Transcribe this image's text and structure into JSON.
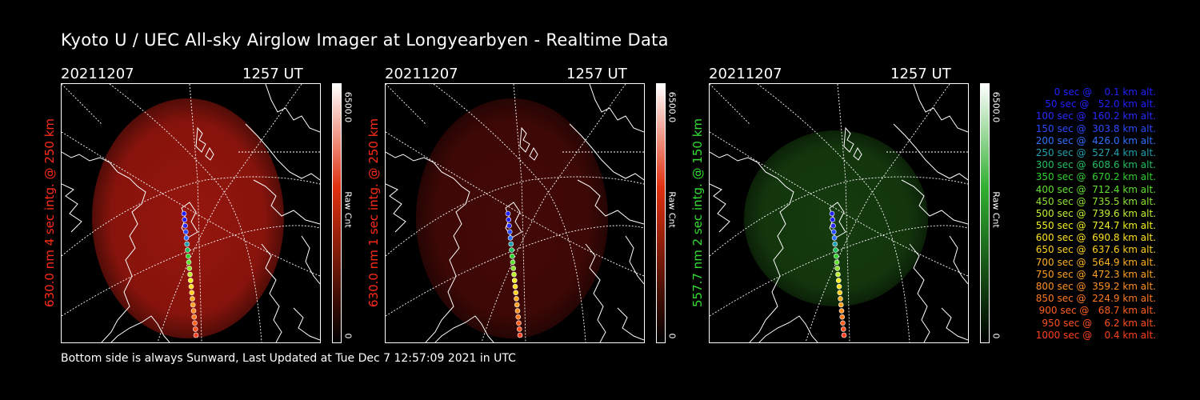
{
  "title": "Kyoto U / UEC All-sky Airglow Imager at Longyearbyen - Realtime Data",
  "footer": "Bottom side is always Sunward, Last Updated at Tue Dec  7 12:57:09 2021 in UTC",
  "panels": [
    {
      "date": "20211207",
      "time": "1257 UT",
      "ylabel": "630.0 nm 4 sec intg. @ 250 km",
      "label_color": "#ff2a1a",
      "cbar_max": "6500.0",
      "cbar_min": "0",
      "cbar_unit": "Raw Cnt",
      "glow_color": "#b01a10",
      "glow_opacity": 0.85,
      "cbar_color": "#e03010"
    },
    {
      "date": "20211207",
      "time": "1257 UT",
      "ylabel": "630.0 nm 1 sec intg. @ 250 km",
      "label_color": "#ff2a1a",
      "cbar_max": "6500.0",
      "cbar_min": "0",
      "cbar_unit": "Raw Cnt",
      "glow_color": "#5a0c08",
      "glow_opacity": 0.75,
      "cbar_color": "#e03010"
    },
    {
      "date": "20211207",
      "time": "1257 UT",
      "ylabel": "557.7 nm 2 sec intg. @ 150 km",
      "label_color": "#33dd33",
      "cbar_max": "6500.0",
      "cbar_min": "0",
      "cbar_unit": "Raw Cnt",
      "glow_color": "#1a4a12",
      "glow_opacity": 0.8,
      "cbar_color": "#30b030"
    }
  ],
  "legend": [
    {
      "text": "   0 sec @    0.1 km alt.",
      "color": "#2020ff"
    },
    {
      "text": "  50 sec @   52.0 km alt.",
      "color": "#2020ff"
    },
    {
      "text": " 100 sec @  160.2 km alt.",
      "color": "#2a2aff"
    },
    {
      "text": " 150 sec @  303.8 km alt.",
      "color": "#2a4aff"
    },
    {
      "text": " 200 sec @  426.0 km alt.",
      "color": "#3070ff"
    },
    {
      "text": " 250 sec @  527.4 km alt.",
      "color": "#20a0b0"
    },
    {
      "text": " 300 sec @  608.6 km alt.",
      "color": "#20c060"
    },
    {
      "text": " 350 sec @  670.2 km alt.",
      "color": "#30d030"
    },
    {
      "text": " 400 sec @  712.4 km alt.",
      "color": "#60e030"
    },
    {
      "text": " 450 sec @  735.5 km alt.",
      "color": "#90e030"
    },
    {
      "text": " 500 sec @  739.6 km alt.",
      "color": "#c0f030"
    },
    {
      "text": " 550 sec @  724.7 km alt.",
      "color": "#f0f020"
    },
    {
      "text": " 600 sec @  690.8 km alt.",
      "color": "#ffe020"
    },
    {
      "text": " 650 sec @  637.6 km alt.",
      "color": "#ffd020"
    },
    {
      "text": " 700 sec @  564.9 km alt.",
      "color": "#ffb020"
    },
    {
      "text": " 750 sec @  472.3 km alt.",
      "color": "#ffa020"
    },
    {
      "text": " 800 sec @  359.2 km alt.",
      "color": "#ff9020"
    },
    {
      "text": " 850 sec @  224.9 km alt.",
      "color": "#ff7a20"
    },
    {
      "text": " 900 sec @   68.7 km alt.",
      "color": "#ff6020"
    },
    {
      "text": " 950 sec @    6.2 km alt.",
      "color": "#ff5020"
    },
    {
      "text": "1000 sec @    0.4 km alt.",
      "color": "#ff4020"
    }
  ],
  "track_colors": [
    "#2020ff",
    "#2020ff",
    "#2a2aff",
    "#2a4aff",
    "#3070ff",
    "#20a0b0",
    "#20c060",
    "#30d030",
    "#60e030",
    "#90e030",
    "#c0f030",
    "#f0f020",
    "#ffe020",
    "#ffd020",
    "#ffb020",
    "#ffa020",
    "#ff9020",
    "#ff7a20",
    "#ff6020",
    "#ff5020",
    "#ff4020"
  ]
}
